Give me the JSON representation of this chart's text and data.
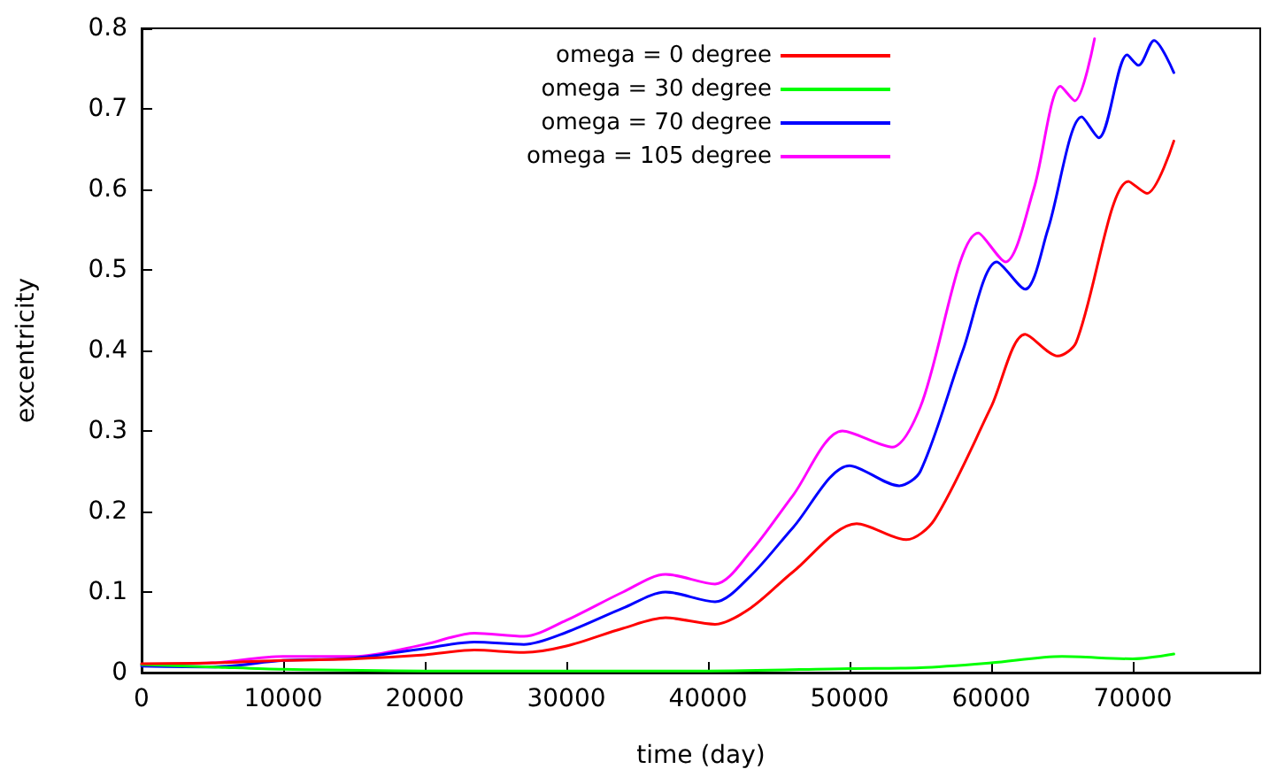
{
  "chart_data": {
    "type": "line",
    "xlabel": "time (day)",
    "ylabel": "excentricity",
    "xlim": [
      0,
      79000
    ],
    "xticks": [
      0,
      10000,
      20000,
      30000,
      40000,
      50000,
      60000,
      70000
    ],
    "ylim": [
      0,
      0.8
    ],
    "yticks": [
      0,
      0.1,
      0.2,
      0.3,
      0.4,
      0.5,
      0.6,
      0.7,
      0.8
    ],
    "grid": false,
    "legend": "top right",
    "marker": "none",
    "line_style": "solid",
    "series": [
      {
        "name": "omega = 0 degree",
        "color": "#ff0000",
        "x": [
          0,
          5000,
          10000,
          15000,
          20000,
          23500,
          27000,
          30000,
          34000,
          37000,
          40500,
          43000,
          46000,
          50500,
          54000,
          56000,
          60000,
          62400,
          64700,
          66000,
          69700,
          71000,
          72900
        ],
        "values": [
          0.011,
          0.012,
          0.015,
          0.017,
          0.022,
          0.028,
          0.025,
          0.033,
          0.055,
          0.068,
          0.06,
          0.08,
          0.125,
          0.185,
          0.165,
          0.19,
          0.33,
          0.42,
          0.393,
          0.41,
          0.61,
          0.595,
          0.66
        ]
      },
      {
        "name": "omega = 30 degree",
        "color": "#00ff00",
        "x": [
          0,
          5000,
          10000,
          20000,
          30000,
          40000,
          50000,
          55000,
          60000,
          65000,
          70000,
          72900
        ],
        "values": [
          0.01,
          0.007,
          0.004,
          0.002,
          0.002,
          0.002,
          0.005,
          0.006,
          0.012,
          0.02,
          0.017,
          0.023
        ]
      },
      {
        "name": "omega = 70 degree",
        "color": "#0000ff",
        "x": [
          0,
          5000,
          10000,
          15000,
          20000,
          23500,
          27000,
          30000,
          34000,
          37000,
          40500,
          43000,
          46000,
          50000,
          53500,
          55000,
          58000,
          60400,
          62400,
          64000,
          66400,
          67600,
          69600,
          70400,
          71500,
          72900
        ],
        "values": [
          0.008,
          0.007,
          0.015,
          0.018,
          0.03,
          0.038,
          0.035,
          0.05,
          0.08,
          0.1,
          0.088,
          0.12,
          0.18,
          0.257,
          0.232,
          0.25,
          0.4,
          0.51,
          0.476,
          0.55,
          0.69,
          0.664,
          0.767,
          0.754,
          0.785,
          0.745
        ]
      },
      {
        "name": "omega = 105 degree",
        "color": "#ff00ff",
        "x": [
          0,
          5000,
          10000,
          15000,
          20000,
          23500,
          27000,
          30000,
          34000,
          37000,
          40500,
          43000,
          46000,
          49500,
          53000,
          55000,
          59100,
          61000,
          63000,
          64900,
          65900,
          67300
        ],
        "values": [
          0.01,
          0.012,
          0.02,
          0.02,
          0.035,
          0.049,
          0.045,
          0.065,
          0.1,
          0.122,
          0.11,
          0.15,
          0.22,
          0.3,
          0.28,
          0.33,
          0.546,
          0.51,
          0.6,
          0.728,
          0.71,
          0.787
        ]
      }
    ]
  }
}
